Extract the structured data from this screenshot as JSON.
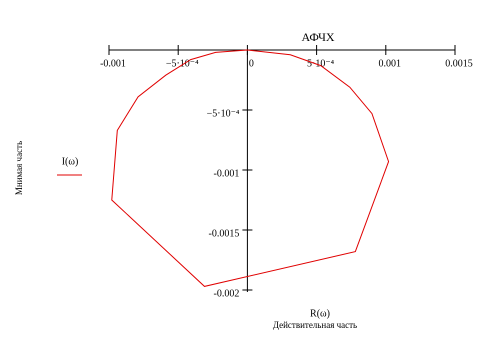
{
  "chart_data": {
    "type": "line",
    "title": "АФЧХ",
    "x_label": "R(ω)",
    "x_axis_title": "Действительная часть",
    "y_axis_title": "Мнимая часть",
    "series": [
      {
        "name": "I(ω)",
        "color": "#e00000",
        "x": [
          0,
          -0.00023,
          -0.00041,
          -0.00059,
          -0.00079,
          -0.00094,
          -0.00098,
          -0.00031,
          0.00078,
          0.00102,
          0.0009,
          0.00074,
          0.00053,
          0.00031,
          0
        ],
        "values": [
          0,
          -2e-05,
          -8e-05,
          -0.00021,
          -0.00039,
          -0.00067,
          -0.00125,
          -0.00197,
          -0.00168,
          -0.00093,
          -0.00053,
          -0.00031,
          -0.00013,
          -4e-05,
          0
        ]
      }
    ],
    "xlim": [
      -0.001,
      0.0015
    ],
    "ylim": [
      -0.002,
      0
    ],
    "xticks": [
      -0.001,
      {
        "value": -0.0005,
        "label": "−5·10⁻⁴"
      },
      0,
      {
        "value": 0.0005,
        "label": "5·10⁻⁴"
      },
      0.001,
      0.0015
    ],
    "yticks": [
      {
        "value": -0.0005,
        "label": "−5·10⁻⁴"
      },
      -0.001,
      -0.0015,
      -0.002
    ]
  }
}
